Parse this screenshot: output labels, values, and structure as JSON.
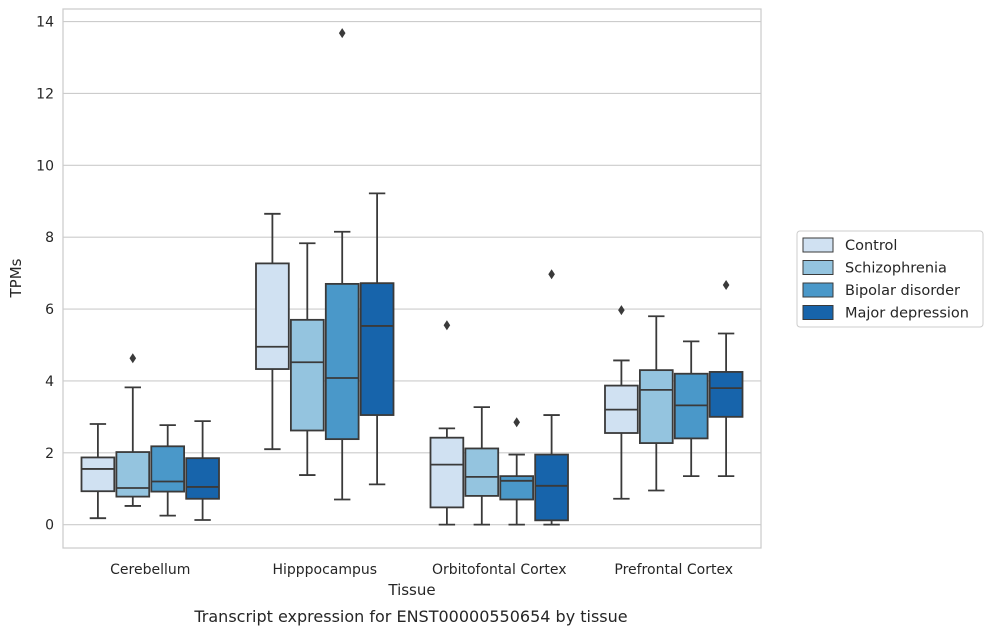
{
  "chart_data": {
    "type": "box",
    "caption": "Transcript expression for ENST00000550654 by tissue",
    "xlabel": "Tissue",
    "ylabel": "TPMs",
    "ylim": [
      -0.65,
      14.35
    ],
    "yticks": [
      0,
      2,
      4,
      6,
      8,
      10,
      12,
      14
    ],
    "grid": true,
    "legend_position": "right",
    "categories": [
      "Cerebellum",
      "Hipppocampus",
      "Orbitofontal Cortex",
      "Prefrontal Cortex"
    ],
    "series": [
      {
        "name": "Control",
        "color": "#d0e1f2",
        "boxes": [
          {
            "whislo": 0.18,
            "q1": 0.93,
            "median": 1.55,
            "q3": 1.87,
            "whishi": 2.8,
            "fliers": []
          },
          {
            "whislo": 2.1,
            "q1": 4.33,
            "median": 4.95,
            "q3": 7.27,
            "whishi": 8.65,
            "fliers": []
          },
          {
            "whislo": 0.0,
            "q1": 0.48,
            "median": 1.67,
            "q3": 2.42,
            "whishi": 2.68,
            "fliers": [
              5.55
            ]
          },
          {
            "whislo": 0.72,
            "q1": 2.55,
            "median": 3.2,
            "q3": 3.87,
            "whishi": 4.57,
            "fliers": [
              5.97
            ]
          }
        ]
      },
      {
        "name": "Schizophrenia",
        "color": "#94c4df",
        "boxes": [
          {
            "whislo": 0.52,
            "q1": 0.78,
            "median": 1.02,
            "q3": 2.02,
            "whishi": 3.82,
            "fliers": [
              4.63
            ]
          },
          {
            "whislo": 1.38,
            "q1": 2.62,
            "median": 4.52,
            "q3": 5.7,
            "whishi": 7.83,
            "fliers": []
          },
          {
            "whislo": 0.0,
            "q1": 0.8,
            "median": 1.33,
            "q3": 2.12,
            "whishi": 3.27,
            "fliers": []
          },
          {
            "whislo": 0.95,
            "q1": 2.27,
            "median": 3.75,
            "q3": 4.3,
            "whishi": 5.8,
            "fliers": []
          }
        ]
      },
      {
        "name": "Bipolar disorder",
        "color": "#4a98c9",
        "boxes": [
          {
            "whislo": 0.25,
            "q1": 0.92,
            "median": 1.2,
            "q3": 2.18,
            "whishi": 2.77,
            "fliers": []
          },
          {
            "whislo": 0.7,
            "q1": 2.38,
            "median": 4.08,
            "q3": 6.7,
            "whishi": 8.15,
            "fliers": [
              13.68
            ]
          },
          {
            "whislo": 0.0,
            "q1": 0.7,
            "median": 1.22,
            "q3": 1.35,
            "whishi": 1.95,
            "fliers": [
              2.85
            ]
          },
          {
            "whislo": 1.35,
            "q1": 2.4,
            "median": 3.32,
            "q3": 4.2,
            "whishi": 5.1,
            "fliers": []
          }
        ]
      },
      {
        "name": "Major depression",
        "color": "#1764ab",
        "boxes": [
          {
            "whislo": 0.13,
            "q1": 0.72,
            "median": 1.05,
            "q3": 1.85,
            "whishi": 2.88,
            "fliers": []
          },
          {
            "whislo": 1.12,
            "q1": 3.05,
            "median": 5.53,
            "q3": 6.72,
            "whishi": 9.22,
            "fliers": []
          },
          {
            "whislo": 0.0,
            "q1": 0.12,
            "median": 1.08,
            "q3": 1.95,
            "whishi": 3.05,
            "fliers": [
              6.97
            ]
          },
          {
            "whislo": 1.35,
            "q1": 3.0,
            "median": 3.8,
            "q3": 4.25,
            "whishi": 5.32,
            "fliers": [
              6.67
            ]
          }
        ]
      }
    ]
  }
}
